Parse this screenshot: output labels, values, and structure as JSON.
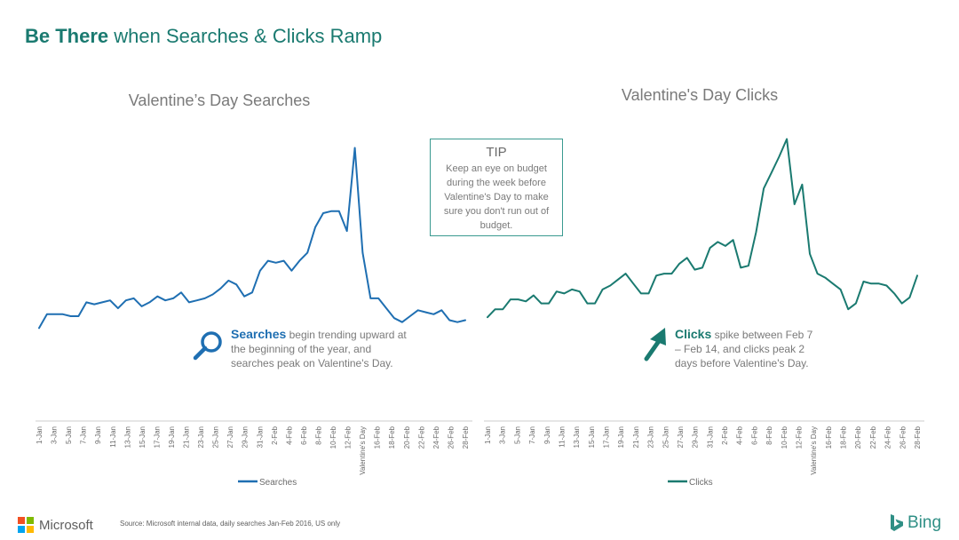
{
  "page": {
    "title_bold": "Be There",
    "title_rest": " when Searches & Clicks Ramp",
    "tip_title": "TIP",
    "tip_text": "Keep an eye on budget during the week before Valentine's Day to make sure you don't run out of budget.",
    "annotation_left_bold": "Searches",
    "annotation_left_text": " begin trending upward at the beginning of the year, and searches peak on Valentine's Day.",
    "annotation_right_bold": "Clicks",
    "annotation_right_text": " spike between Feb 7 – Feb 14, and clicks peak 2 days before Valentine's Day.",
    "source": "Source: Microsoft internal data, daily searches Jan-Feb 2016, US only",
    "brand_left": "Microsoft",
    "brand_right": "Bing",
    "colors": {
      "title": "#1a7a70",
      "searches_line": "#1f6fb2",
      "clicks_line": "#1a7a70",
      "tip_border": "#3a9a90"
    },
    "icons": [
      "magnifier-icon",
      "arrow-up-right-icon",
      "microsoft-logo-icon",
      "bing-logo-icon"
    ]
  },
  "chart_data": [
    {
      "type": "line",
      "title": "Valentine’s Day Searches",
      "xlabel": "",
      "ylabel": "",
      "ylim": [
        0,
        100
      ],
      "grid": false,
      "legend": "bottom",
      "tick_labels": [
        "1-Jan",
        "3-Jan",
        "5-Jan",
        "7-Jan",
        "9-Jan",
        "11-Jan",
        "13-Jan",
        "15-Jan",
        "17-Jan",
        "19-Jan",
        "21-Jan",
        "23-Jan",
        "25-Jan",
        "27-Jan",
        "29-Jan",
        "31-Jan",
        "2-Feb",
        "4-Feb",
        "6-Feb",
        "8-Feb",
        "10-Feb",
        "12-Feb",
        "Valentine's Day",
        "16-Feb",
        "18-Feb",
        "20-Feb",
        "22-Feb",
        "24-Feb",
        "26-Feb",
        "28-Feb"
      ],
      "series": [
        {
          "name": "Searches",
          "values": [
            7,
            14,
            14,
            14,
            13,
            13,
            20,
            19,
            20,
            21,
            17,
            21,
            22,
            18,
            20,
            23,
            21,
            22,
            25,
            20,
            21,
            22,
            24,
            27,
            31,
            29,
            23,
            25,
            36,
            41,
            40,
            41,
            36,
            41,
            45,
            58,
            65,
            66,
            66,
            56,
            98,
            45,
            22,
            22,
            17,
            12,
            10,
            13,
            16,
            15,
            14,
            16,
            11,
            10,
            11
          ]
        }
      ]
    },
    {
      "type": "line",
      "title": "Valentine's Day Clicks",
      "xlabel": "",
      "ylabel": "",
      "ylim": [
        0,
        100
      ],
      "grid": false,
      "legend": "bottom",
      "tick_labels": [
        "1-Jan",
        "3-Jan",
        "5-Jan",
        "7-Jan",
        "9-Jan",
        "11-Jan",
        "13-Jan",
        "15-Jan",
        "17-Jan",
        "19-Jan",
        "21-Jan",
        "23-Jan",
        "25-Jan",
        "27-Jan",
        "29-Jan",
        "31-Jan",
        "2-Feb",
        "4-Feb",
        "6-Feb",
        "8-Feb",
        "10-Feb",
        "12-Feb",
        "Valentine's Day",
        "16-Feb",
        "18-Feb",
        "20-Feb",
        "22-Feb",
        "24-Feb",
        "26-Feb",
        "28-Feb"
      ],
      "series": [
        {
          "name": "Clicks",
          "values": [
            8,
            12,
            12,
            17,
            17,
            16,
            19,
            15,
            15,
            21,
            20,
            22,
            21,
            15,
            15,
            22,
            24,
            27,
            30,
            25,
            20,
            20,
            29,
            30,
            30,
            35,
            38,
            32,
            33,
            43,
            46,
            44,
            47,
            33,
            34,
            51,
            73,
            81,
            89,
            98,
            65,
            75,
            40,
            30,
            28,
            25,
            22,
            12,
            15,
            26,
            25,
            25,
            24,
            20,
            15,
            18,
            29
          ]
        }
      ]
    }
  ]
}
